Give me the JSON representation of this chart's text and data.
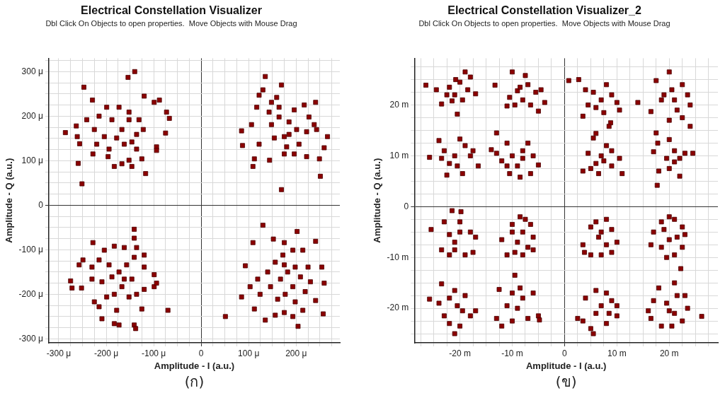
{
  "chart_data": [
    {
      "type": "scatter",
      "title": "Electrical Constellation Visualizer",
      "subtitle": "Dbl Click On Objects to open properties.  Move Objects with Mouse Drag",
      "xlabel": "Amplitude - I (a.u.)",
      "ylabel": "Amplitude - Q (a.u.)",
      "annotations": [
        "(ก)"
      ],
      "grid": true,
      "marker": "square",
      "xlim": [
        -321,
        292
      ],
      "ylim": [
        -309,
        330
      ],
      "xticks": [
        {
          "value": -300,
          "label": "-300 μ"
        },
        {
          "value": -275,
          "label": null
        },
        {
          "value": -250,
          "label": null
        },
        {
          "value": -225,
          "label": null
        },
        {
          "value": -200,
          "label": "-200 μ"
        },
        {
          "value": -175,
          "label": null
        },
        {
          "value": -150,
          "label": null
        },
        {
          "value": -125,
          "label": null
        },
        {
          "value": -100,
          "label": "-100 μ"
        },
        {
          "value": -75,
          "label": null
        },
        {
          "value": -50,
          "label": null
        },
        {
          "value": -25,
          "label": null
        },
        0,
        {
          "value": 25,
          "label": null
        },
        {
          "value": 50,
          "label": null
        },
        {
          "value": 75,
          "label": null
        },
        {
          "value": 100,
          "label": "100 μ"
        },
        {
          "value": 125,
          "label": null
        },
        {
          "value": 150,
          "label": null
        },
        {
          "value": 175,
          "label": null
        },
        {
          "value": 200,
          "label": "200 μ"
        },
        {
          "value": 225,
          "label": null
        },
        {
          "value": 250,
          "label": null
        },
        {
          "value": 275,
          "label": null
        }
      ],
      "yticks": [
        {
          "value": -300,
          "label": "-300 μ"
        },
        {
          "value": -275,
          "label": null
        },
        {
          "value": -250,
          "label": null
        },
        {
          "value": -225,
          "label": null
        },
        {
          "value": -200,
          "label": "-200 μ"
        },
        {
          "value": -175,
          "label": null
        },
        {
          "value": -150,
          "label": null
        },
        {
          "value": -125,
          "label": null
        },
        {
          "value": -100,
          "label": "-100 μ"
        },
        {
          "value": -75,
          "label": null
        },
        {
          "value": -50,
          "label": null
        },
        {
          "value": -25,
          "label": null
        },
        0,
        {
          "value": 25,
          "label": null
        },
        {
          "value": 50,
          "label": null
        },
        {
          "value": 75,
          "label": null
        },
        {
          "value": 100,
          "label": "100 μ"
        },
        {
          "value": 125,
          "label": null
        },
        {
          "value": 150,
          "label": null
        },
        {
          "value": 175,
          "label": null
        },
        {
          "value": 200,
          "label": "200 μ"
        },
        {
          "value": 225,
          "label": null
        },
        {
          "value": 250,
          "label": null
        },
        {
          "value": 275,
          "label": null
        },
        {
          "value": 300,
          "label": "300 μ"
        },
        {
          "value": 325,
          "label": null
        }
      ],
      "series": [
        {
          "color": "#8b0000",
          "x": [
            -286,
            -247,
            -251,
            -259,
            -154,
            -140,
            -229,
            -263,
            -261,
            -256,
            -241,
            -225,
            -228,
            -215,
            -199,
            -188,
            -196,
            -183,
            -167,
            -152,
            -146,
            -125,
            -117,
            -120,
            -99,
            -88,
            -73,
            -67,
            -75,
            -94,
            -94,
            -131,
            -152,
            -167,
            -178,
            -162,
            -146,
            -136,
            -122,
            -204,
            -220,
            -173,
            -152,
            -194,
            -136,
            135,
            169,
            130,
            169,
            251,
            259,
            266,
            241,
            85,
            87,
            109,
            112,
            106,
            144,
            154,
            122,
            175,
            185,
            196,
            217,
            227,
            238,
            222,
            206,
            222,
            196,
            175,
            180,
            148,
            143,
            164,
            159,
            117,
            122,
            201,
            185,
            164,
            148,
            243,
            249,
            -141,
            -141,
            -228,
            -249,
            -257,
            -275,
            -272,
            -252,
            -70,
            -209,
            -183,
            -173,
            -141,
            -138,
            -225,
            -215,
            -178,
            -125,
            -99,
            -94,
            -99,
            -120,
            -120,
            -136,
            -141,
            -162,
            -183,
            -204,
            -215,
            -230,
            -230,
            -209,
            -188,
            -173,
            -157,
            -146,
            -167,
            -183,
            -199,
            -152,
            -136,
            -120,
            -194,
            -162,
            130,
            202,
            109,
            152,
            175,
            241,
            254,
            259,
            257,
            85,
            51,
            93,
            112,
            135,
            156,
            175,
            193,
            204,
            214,
            241,
            230,
            225,
            214,
            193,
            172,
            156,
            140,
            119,
            103,
            124,
            146,
            167,
            182,
            198,
            209,
            193,
            177,
            161,
            198,
            219,
            175
          ],
          "values": [
            163,
            265,
            48,
            94,
            287,
            300,
            236,
            178,
            154,
            138,
            192,
            170,
            115,
            200,
            220,
            192,
            109,
            87,
            93,
            101,
            87,
            104,
            71,
            245,
            231,
            236,
            209,
            195,
            162,
            131,
            123,
            192,
            192,
            170,
            151,
            137,
            142,
            159,
            170,
            154,
            137,
            220,
            209,
            126,
            126,
            289,
            270,
            259,
            35,
            65,
            129,
            154,
            231,
            167,
            134,
            87,
            104,
            181,
            101,
            151,
            137,
            154,
            187,
            214,
            225,
            198,
            181,
            165,
            137,
            109,
            115,
            115,
            131,
            181,
            209,
            220,
            242,
            220,
            247,
            170,
            159,
            198,
            231,
            170,
            104,
            -54,
            -74,
            -84,
            -123,
            -134,
            -170,
            -186,
            -186,
            -236,
            -255,
            -266,
            -269,
            -269,
            -277,
            -217,
            -228,
            -236,
            -233,
            -183,
            -175,
            -156,
            -139,
            -112,
            -95,
            -117,
            -95,
            -92,
            -101,
            -123,
            -139,
            -166,
            -172,
            -161,
            -150,
            -134,
            -166,
            -183,
            -200,
            -206,
            -206,
            -200,
            -189,
            -134,
            -166,
            -45,
            -59,
            -84,
            -76,
            -84,
            -81,
            -139,
            -175,
            -244,
            -206,
            -250,
            -136,
            -233,
            -258,
            -247,
            -241,
            -250,
            -272,
            -236,
            -214,
            -172,
            -139,
            -101,
            -101,
            -112,
            -128,
            -150,
            -166,
            -183,
            -200,
            -183,
            -166,
            -150,
            -139,
            -161,
            -183,
            -200,
            -211,
            -217,
            -194,
            -134
          ]
        }
      ]
    },
    {
      "type": "scatter",
      "title": "Electrical Constellation Visualizer_2",
      "subtitle": "Dbl Click On Objects to open properties.  Move Objects with Mouse Drag",
      "xlabel": "Amplitude - I (a.u.)",
      "ylabel": "Amplitude - Q (a.u.)",
      "annotations": [
        "(ข)"
      ],
      "grid": true,
      "marker": "square",
      "xlim": [
        -28.7,
        29.3
      ],
      "ylim": [
        -26.8,
        29.2
      ],
      "xticks": [
        {
          "value": -27.5,
          "label": null
        },
        {
          "value": -25,
          "label": null
        },
        {
          "value": -22.5,
          "label": null
        },
        {
          "value": -20,
          "label": "-20 m"
        },
        {
          "value": -17.5,
          "label": null
        },
        {
          "value": -15,
          "label": null
        },
        {
          "value": -12.5,
          "label": null
        },
        {
          "value": -10,
          "label": "-10 m"
        },
        {
          "value": -7.5,
          "label": null
        },
        {
          "value": -5,
          "label": null
        },
        {
          "value": -2.5,
          "label": null
        },
        0,
        {
          "value": 2.5,
          "label": null
        },
        {
          "value": 5,
          "label": null
        },
        {
          "value": 7.5,
          "label": null
        },
        {
          "value": 10,
          "label": "10 m"
        },
        {
          "value": 12.5,
          "label": null
        },
        {
          "value": 15,
          "label": null
        },
        {
          "value": 17.5,
          "label": null
        },
        {
          "value": 20,
          "label": "20 m"
        },
        {
          "value": 22.5,
          "label": null
        },
        {
          "value": 25,
          "label": null
        },
        {
          "value": 27.5,
          "label": null
        }
      ],
      "yticks": [
        {
          "value": -25,
          "label": null
        },
        {
          "value": -22.5,
          "label": null
        },
        {
          "value": -20,
          "label": "-20 m"
        },
        {
          "value": -17.5,
          "label": null
        },
        {
          "value": -15,
          "label": null
        },
        {
          "value": -12.5,
          "label": null
        },
        {
          "value": -10,
          "label": "-10 m"
        },
        {
          "value": -7.5,
          "label": null
        },
        {
          "value": -5,
          "label": null
        },
        {
          "value": -2.5,
          "label": null
        },
        0,
        {
          "value": 2.5,
          "label": null
        },
        {
          "value": 5,
          "label": null
        },
        {
          "value": 7.5,
          "label": null
        },
        {
          "value": 10,
          "label": "10 m"
        },
        {
          "value": 12.5,
          "label": null
        },
        {
          "value": 15,
          "label": null
        },
        {
          "value": 17.5,
          "label": null
        },
        {
          "value": 20,
          "label": "20 m"
        },
        {
          "value": 22.5,
          "label": null
        },
        {
          "value": 25,
          "label": null
        },
        {
          "value": 27.5,
          "label": null
        }
      ],
      "series": [
        {
          "color": "#8b0000",
          "x": [
            -26.5,
            -24.5,
            -23.5,
            -22,
            -21,
            -20,
            -19,
            -18,
            -17,
            -20.5,
            -19.5,
            -22.5,
            -21.5,
            -18.5,
            -20.8,
            -13.3,
            -10,
            -7.5,
            -10.5,
            -9,
            -8,
            -7,
            -5.5,
            -4.5,
            -3.8,
            -5,
            -11,
            -9.5,
            -8.5,
            -6.5,
            0.8,
            2.7,
            14,
            3.5,
            4.5,
            5.5,
            7,
            8,
            9,
            10,
            10.5,
            8.8,
            8.5,
            6,
            7.5,
            4,
            20,
            17.5,
            16.5,
            19,
            21,
            22.5,
            23.5,
            24,
            24,
            22.5,
            20,
            18.5,
            21.5,
            20.5,
            -25.8,
            -24,
            -23,
            -22,
            -21,
            -20,
            -19,
            -18,
            -16.5,
            -19.5,
            -22.5,
            -20.5,
            -23.5,
            -17.5,
            -13,
            -14,
            -13,
            -12,
            -11,
            -10,
            -9,
            -8,
            -7,
            -6,
            -5,
            -6.5,
            -8.5,
            -10.5,
            -8,
            -11,
            3.5,
            5.5,
            4.5,
            6,
            7,
            8,
            9,
            10.5,
            11,
            9,
            6.5,
            5,
            7.5,
            6,
            17.5,
            17.8,
            17,
            18,
            17.7,
            19.5,
            20,
            21,
            22,
            23,
            24.5,
            22,
            20,
            21,
            -21.5,
            -19.8,
            -25.5,
            -23,
            -22,
            -21,
            -20,
            -18,
            -17,
            -23.5,
            -22,
            -19,
            -17.5,
            -21,
            -20,
            -8.5,
            -7.5,
            -6.5,
            -6,
            -7,
            -9,
            -10,
            -12,
            -11,
            -9.5,
            -8,
            -6,
            -10,
            -8,
            3.5,
            5,
            6,
            8,
            9,
            10,
            9,
            7,
            5,
            3.8,
            6.5,
            8,
            7,
            20,
            21,
            22.5,
            23,
            22.5,
            21,
            19.5,
            18.5,
            16.5,
            17,
            19,
            20,
            21.5,
            18.5,
            -25.8,
            -23.5,
            -24,
            -23,
            -22,
            -21,
            -20,
            -18,
            -17,
            -19,
            -21,
            -20.5,
            -22,
            -19.5,
            -9.5,
            -12.5,
            -13,
            -12,
            -10,
            -9,
            -8,
            -6,
            -5,
            -4.8,
            -7,
            -10,
            -11,
            -8.5,
            2.5,
            3.5,
            5,
            5.5,
            4,
            6,
            8,
            9,
            10,
            10,
            8,
            6,
            7,
            8.5,
            26.2,
            22.2,
            21,
            18,
            17,
            16,
            16.5,
            18.5,
            20.5,
            22.5,
            23.5,
            23,
            21.5,
            19.5,
            20,
            21
          ],
          "values": [
            23.9,
            23,
            20.2,
            23.5,
            22,
            24.5,
            26.5,
            25.5,
            22.2,
            18.2,
            21,
            22,
            20.8,
            23,
            25,
            23.9,
            26.5,
            25.8,
            21.5,
            22.8,
            21,
            24,
            22.5,
            23,
            20.5,
            18.8,
            19.8,
            20,
            23.5,
            20,
            24.8,
            25,
            20.5,
            17.8,
            20,
            22.5,
            21,
            24,
            22,
            20.5,
            19,
            16.5,
            15.8,
            19.5,
            18.5,
            23,
            26.5,
            24.8,
            18.7,
            22,
            21,
            24,
            22,
            20,
            15.8,
            17.5,
            17,
            21,
            19,
            23,
            9.7,
            13,
            11,
            8.5,
            10,
            13.3,
            12,
            10,
            8,
            6.5,
            6.2,
            8,
            9.5,
            11,
            14.5,
            11.2,
            10.5,
            9,
            12.5,
            10,
            8,
            11,
            12.5,
            10,
            8.2,
            6.5,
            5.8,
            6.5,
            9.5,
            8,
            7,
            13.5,
            10.5,
            8.5,
            10,
            12,
            11,
            9.5,
            6.5,
            8,
            6.5,
            7.5,
            9,
            14.4,
            14.5,
            12.5,
            10.8,
            7,
            4.2,
            9.5,
            13.2,
            11,
            9.5,
            10.5,
            10.5,
            6,
            7.5,
            8.8,
            -0.8,
            -1,
            -4.5,
            -3,
            -5.5,
            -7,
            -5,
            -5,
            -6,
            -8.5,
            -9.5,
            -9.5,
            -9,
            -8.5,
            -3,
            -2,
            -2.5,
            -3.5,
            -6,
            -8,
            -7,
            -5,
            -6.5,
            -9.5,
            -9,
            -9.5,
            -8.5,
            -3.5,
            -5,
            -7.5,
            -4,
            -3,
            -2.5,
            -4.5,
            -7,
            -9,
            -9.5,
            -9.5,
            -9,
            -6,
            -7.5,
            -5,
            -2,
            -2.5,
            -4,
            -5.5,
            -8,
            -9.5,
            -10,
            -8,
            -7.5,
            -5,
            -4.5,
            -6.5,
            -6,
            -3,
            -18.2,
            -15.2,
            -19,
            -21.5,
            -23,
            -25,
            -23.5,
            -21.5,
            -20.5,
            -17.5,
            -16.5,
            -19.5,
            -18,
            -20.5,
            -13.5,
            -16.3,
            -22,
            -23.5,
            -22.5,
            -20,
            -18,
            -17,
            -21.5,
            -22.3,
            -22,
            -17,
            -19.5,
            -16,
            -22,
            -22.5,
            -24,
            -25,
            -18,
            -16.5,
            -17,
            -18.5,
            -19.5,
            -21.5,
            -23,
            -21,
            -19.5,
            -21,
            -21.6,
            -12.2,
            -15,
            -16,
            -18.5,
            -20.5,
            -22,
            -23.5,
            -23.5,
            -22.5,
            -20,
            -17.5,
            -17.5,
            -19,
            -20.5,
            -21
          ]
        }
      ]
    }
  ]
}
